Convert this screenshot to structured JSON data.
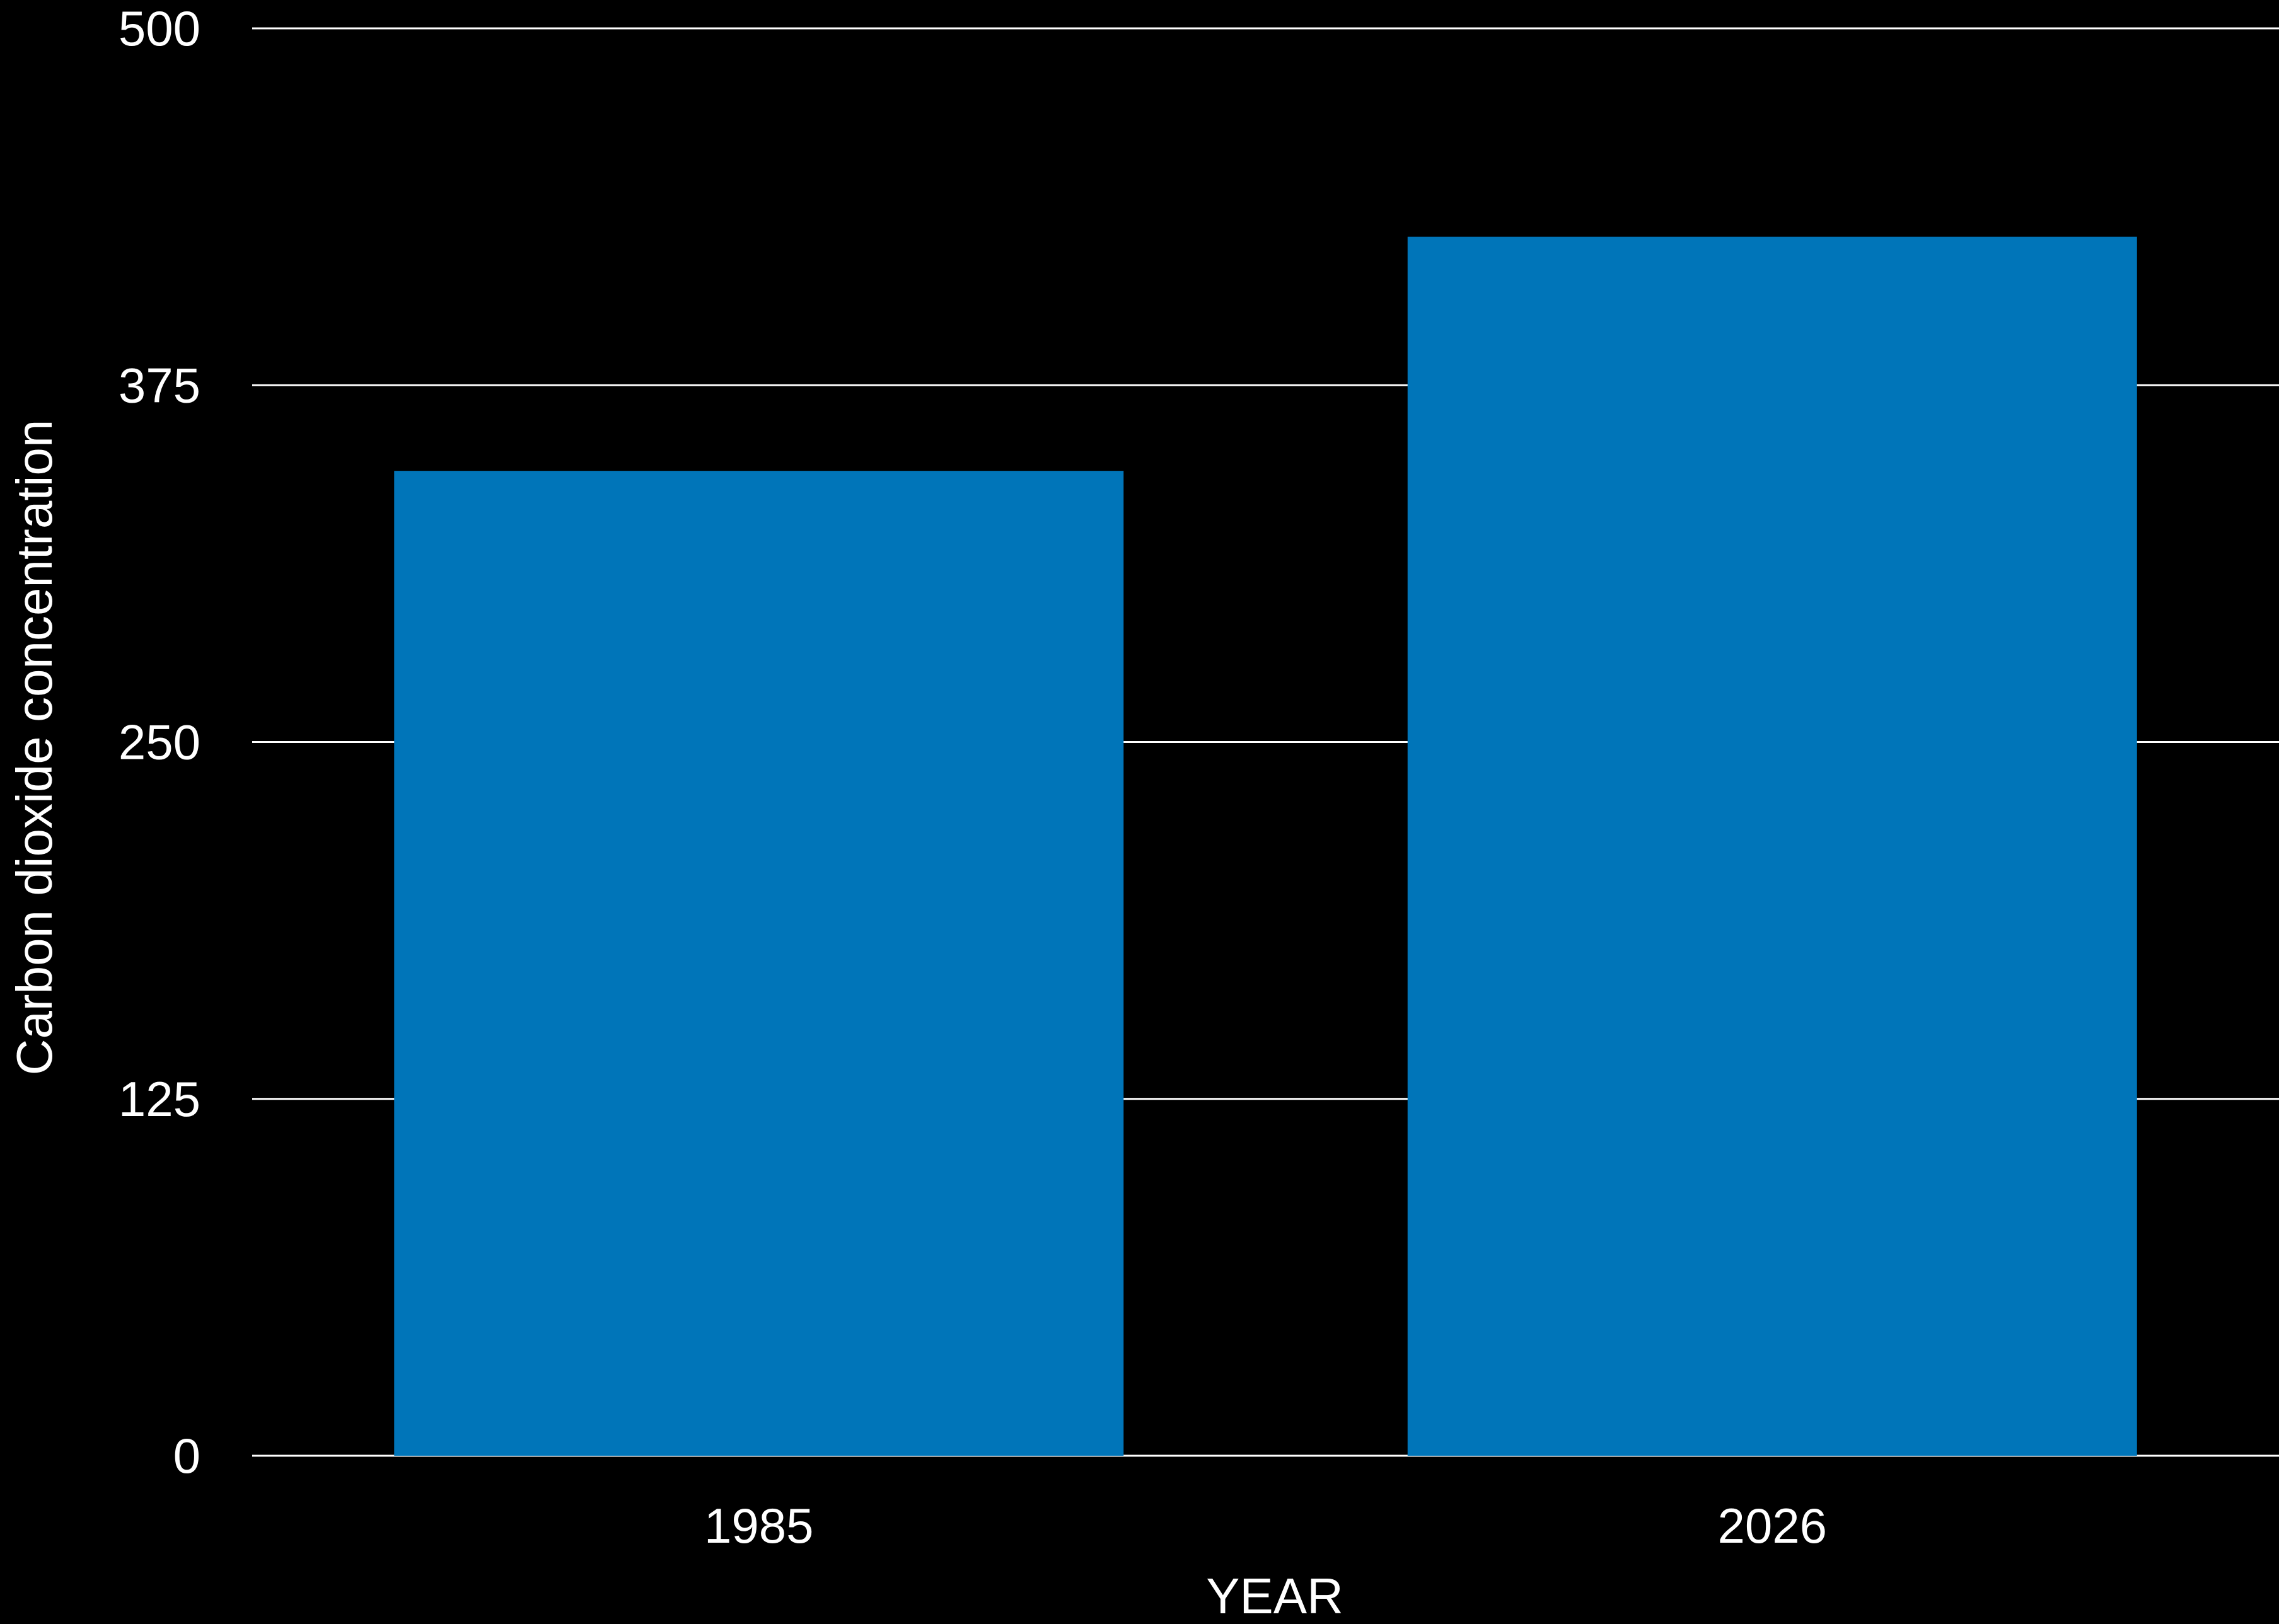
{
  "chart_data": {
    "type": "bar",
    "title": "",
    "xlabel": "YEAR",
    "ylabel": "Carbon dioxide concentration",
    "categories": [
      "1985",
      "2026"
    ],
    "values": [
      345,
      427
    ],
    "ylim": [
      0,
      500
    ],
    "yticks": [
      0,
      125,
      250,
      375,
      500
    ],
    "ytick_labels": [
      "0",
      "125",
      "250",
      "375",
      "500"
    ],
    "grid": true,
    "legend": "none",
    "colors": {
      "background": "#000000",
      "bar": "#0075B9",
      "grid": "#ffffff",
      "text": "#ffffff"
    }
  }
}
